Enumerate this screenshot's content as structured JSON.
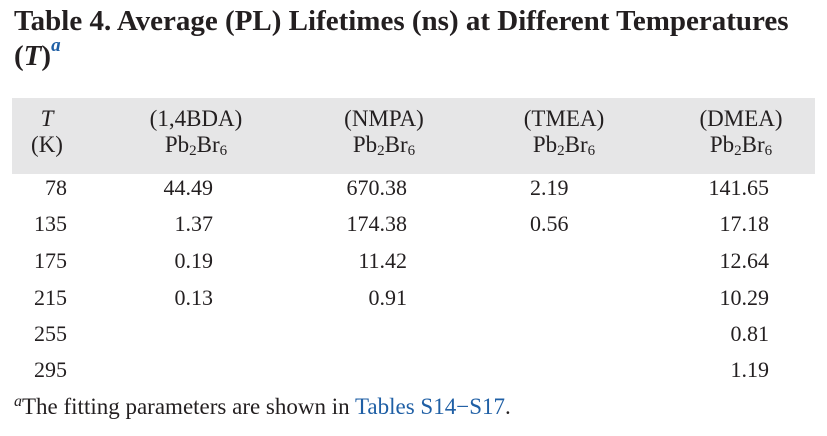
{
  "title": {
    "prefix": "Table 4. Average (PL) Lifetimes (ns) at Different Temperatures (",
    "T": "T",
    "suffix": ")",
    "footnote_mark": "a"
  },
  "columns": [
    {
      "line1": "T",
      "line2": "(K)"
    },
    {
      "line1": "(1,4BDA)",
      "formula": "Pb",
      "sub1": "2",
      "mid": "Br",
      "sub2": "6"
    },
    {
      "line1": "(NMPA)",
      "formula": "Pb",
      "sub1": "2",
      "mid": "Br",
      "sub2": "6"
    },
    {
      "line1": "(TMEA)",
      "formula": "Pb",
      "sub1": "2",
      "mid": "Br",
      "sub2": "6"
    },
    {
      "line1": "(DMEA)",
      "formula": "Pb",
      "sub1": "2",
      "mid": "Br",
      "sub2": "6"
    }
  ],
  "rows": [
    [
      "78",
      "44.49",
      "670.38",
      "2.19",
      "141.65"
    ],
    [
      "135",
      "1.37",
      "174.38",
      "0.56",
      "17.18"
    ],
    [
      "175",
      "0.19",
      "11.42",
      "",
      "12.64"
    ],
    [
      "215",
      "0.13",
      "0.91",
      "",
      "10.29"
    ],
    [
      "255",
      "",
      "",
      "",
      "0.81"
    ],
    [
      "295",
      "",
      "",
      "",
      "1.19"
    ]
  ],
  "footnote": {
    "mark": "a",
    "text": "The fitting parameters are shown in ",
    "link": "Tables S14−S17",
    "end": "."
  }
}
